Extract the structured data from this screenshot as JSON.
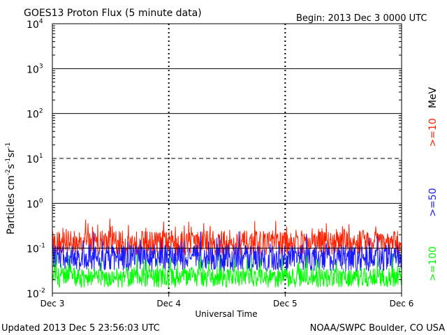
{
  "chart_data": {
    "type": "line",
    "title": "GOES13 Proton Flux (5 minute data)",
    "begin": "Begin: 2013 Dec 3 0000 UTC",
    "ylabel_base": "Particles cm",
    "ylabel_sup1": "-2",
    "ylabel_mid1": "s",
    "ylabel_sup2": "-1",
    "ylabel_mid2": "sr",
    "ylabel_sup3": "-1",
    "xlabel": "Universal Time",
    "yscale": "log",
    "ylim": [
      0.01,
      10000
    ],
    "xlim": [
      0,
      3
    ],
    "x_ticks": [
      {
        "value": 0,
        "label": "Dec 3"
      },
      {
        "value": 1,
        "label": "Dec 4"
      },
      {
        "value": 2,
        "label": "Dec 5"
      },
      {
        "value": 3,
        "label": "Dec 6"
      }
    ],
    "y_ticks": [
      {
        "value": 0.01,
        "base": "10",
        "exp": "-2"
      },
      {
        "value": 0.1,
        "base": "10",
        "exp": "-1"
      },
      {
        "value": 1,
        "base": "10",
        "exp": "0"
      },
      {
        "value": 10,
        "base": "10",
        "exp": "1"
      },
      {
        "value": 100,
        "base": "10",
        "exp": "2"
      },
      {
        "value": 1000,
        "base": "10",
        "exp": "3"
      },
      {
        "value": 10000,
        "base": "10",
        "exp": "4"
      }
    ],
    "threshold_lines": [
      {
        "value": 1,
        "style": "solid"
      },
      {
        "value": 10,
        "style": "dashed"
      },
      {
        "value": 100,
        "style": "solid"
      },
      {
        "value": 1000,
        "style": "solid"
      },
      {
        "value": 0.1,
        "style": "solid"
      }
    ],
    "unit_label": "MeV",
    "series": [
      {
        "name": ">=10",
        "color": "#ff2000",
        "base": 0.13,
        "noise": 0.28,
        "spike": 0.15
      },
      {
        "name": ">=50",
        "color": "#1a1aff",
        "base": 0.06,
        "noise": 0.3,
        "spike": 0.08
      },
      {
        "name": ">=100",
        "color": "#00ff00",
        "base": 0.022,
        "noise": 0.22,
        "spike": 0.12
      }
    ],
    "points_per_series": 864
  },
  "footer": {
    "updated": "Updated 2013 Dec  5 23:56:03 UTC",
    "source": "NOAA/SWPC Boulder, CO USA"
  }
}
